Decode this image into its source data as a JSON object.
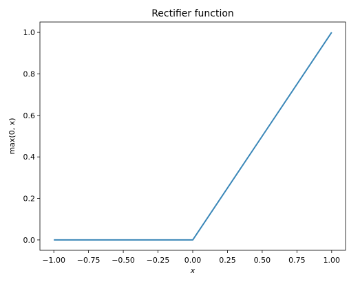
{
  "chart_data": {
    "type": "line",
    "title": "Rectifier function",
    "xlabel": "x",
    "ylabel": "max(0, x)",
    "xlim": [
      -1.1,
      1.1
    ],
    "ylim": [
      -0.05,
      1.05
    ],
    "x_ticks": [
      -1.0,
      -0.75,
      -0.5,
      -0.25,
      0.0,
      0.25,
      0.5,
      0.75,
      1.0
    ],
    "x_tick_labels": [
      "−1.00",
      "−0.75",
      "−0.50",
      "−0.25",
      "0.00",
      "0.25",
      "0.50",
      "0.75",
      "1.00"
    ],
    "y_ticks": [
      0.0,
      0.2,
      0.4,
      0.6,
      0.8,
      1.0
    ],
    "y_tick_labels": [
      "0.0",
      "0.2",
      "0.4",
      "0.6",
      "0.8",
      "1.0"
    ],
    "grid": false,
    "series": [
      {
        "color": "#3a87b8",
        "x": [
          -1.0,
          0.0,
          1.0
        ],
        "y": [
          0.0,
          0.0,
          1.0
        ]
      }
    ]
  }
}
